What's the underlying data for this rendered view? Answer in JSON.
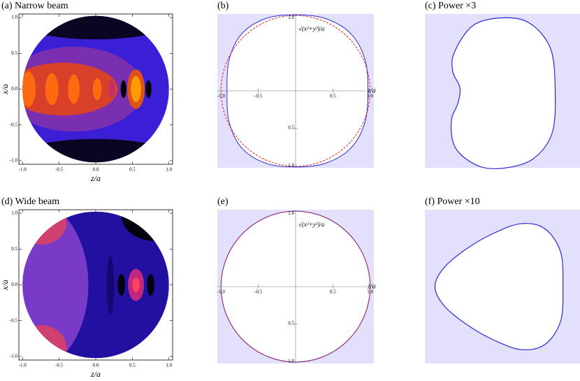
{
  "chart_data": [
    {
      "type": "contour",
      "title": "(a) Narrow beam",
      "xlabel": "z/a",
      "ylabel": "x/a",
      "xlim": [
        -1.05,
        1.05
      ],
      "ylim": [
        -1.05,
        1.05
      ],
      "xticks": [
        {
          "value": -1,
          "label": "-1.0"
        },
        {
          "value": -0.5,
          "label": "-0.5"
        },
        {
          "value": 0,
          "label": "0.0"
        },
        {
          "value": 0.5,
          "label": "0.5"
        },
        {
          "value": 1,
          "label": "1.0"
        }
      ],
      "yticks": [
        {
          "value": -1,
          "label": "-1.0"
        },
        {
          "value": -0.5,
          "label": "-0.5"
        },
        {
          "value": 0,
          "label": "0.0"
        },
        {
          "value": 0.5,
          "label": "0.5"
        },
        {
          "value": 1,
          "label": "1.0"
        }
      ]
    },
    {
      "type": "outline",
      "title": "(b)",
      "xlabel": "z/a",
      "annotation": "√(x²+y²)/a",
      "xlim": [
        -1.05,
        1.05
      ],
      "ylim": [
        -1.02,
        1.02
      ],
      "xticks": [
        {
          "value": -1,
          "label": "-1.0"
        },
        {
          "value": -0.5,
          "label": "-0.5"
        },
        {
          "value": 0.5,
          "label": "0.5"
        },
        {
          "value": 1,
          "label": "1.0"
        }
      ],
      "yticks": [
        {
          "value": 1,
          "label": "1.0"
        },
        {
          "value": -0.5,
          "label": "0.5"
        },
        {
          "value": -1,
          "label": "1.0"
        }
      ],
      "series": [
        {
          "color": "#2b2bd6",
          "dash": false,
          "x": [
            0.97,
            0.93,
            0.74,
            0.4,
            0,
            -0.4,
            -0.72,
            -0.89,
            -0.92,
            -0.89,
            -0.72,
            -0.4,
            0,
            0.4,
            0.74,
            0.93
          ],
          "y": [
            0,
            0.42,
            0.76,
            0.96,
            1.01,
            0.96,
            0.76,
            0.42,
            0,
            -0.42,
            -0.76,
            -0.96,
            -1.01,
            -0.96,
            -0.76,
            -0.42
          ]
        },
        {
          "color": "#e0201e",
          "dash": true,
          "x": [
            1,
            0.924,
            0.707,
            0.383,
            0,
            -0.383,
            -0.707,
            -0.924,
            -1,
            -0.924,
            -0.707,
            -0.383,
            0,
            0.383,
            0.707,
            0.924
          ],
          "y": [
            0,
            0.383,
            0.707,
            0.924,
            1,
            0.924,
            0.707,
            0.383,
            0,
            -0.383,
            -0.707,
            -0.924,
            -1,
            -0.924,
            -0.707,
            -0.383
          ]
        }
      ]
    },
    {
      "type": "shape",
      "title": "(c) Power ×3",
      "xlim": [
        -1,
        1
      ],
      "ylim": [
        -1,
        1
      ],
      "series": [
        {
          "color": "#2b2bd6",
          "x": [
            0.68,
            0.62,
            0.35,
            0.0,
            -0.38,
            -0.62,
            -0.64,
            -0.55,
            -0.57,
            -0.66,
            -0.6,
            -0.3,
            0.05,
            0.4,
            0.64
          ],
          "y": [
            0,
            0.55,
            0.88,
            0.95,
            0.85,
            0.5,
            0.25,
            0.05,
            -0.15,
            -0.4,
            -0.75,
            -0.98,
            -1.0,
            -0.88,
            -0.55
          ]
        }
      ]
    },
    {
      "type": "contour",
      "title": "(d) Wide beam",
      "xlabel": "z/a",
      "ylabel": "x/a",
      "xlim": [
        -1.05,
        1.05
      ],
      "ylim": [
        -1.05,
        1.05
      ],
      "xticks": [
        {
          "value": -1,
          "label": "-1.0"
        },
        {
          "value": -0.5,
          "label": "-0.5"
        },
        {
          "value": 0,
          "label": "0.0"
        },
        {
          "value": 0.5,
          "label": "0.5"
        },
        {
          "value": 1,
          "label": "1.0"
        }
      ],
      "yticks": [
        {
          "value": -1,
          "label": "-1.0"
        },
        {
          "value": -0.5,
          "label": "-0.5"
        },
        {
          "value": 0,
          "label": "0.0"
        },
        {
          "value": 0.5,
          "label": "0.5"
        },
        {
          "value": 1,
          "label": "1.0"
        }
      ]
    },
    {
      "type": "outline",
      "title": "(e)",
      "xlabel": "z/a",
      "annotation": "√(x²+y²)/a",
      "xlim": [
        -1.05,
        1.05
      ],
      "ylim": [
        -1.02,
        1.02
      ],
      "xticks": [
        {
          "value": -1,
          "label": "-1.0"
        },
        {
          "value": -0.5,
          "label": "-0.5"
        },
        {
          "value": 0.5,
          "label": "0.5"
        },
        {
          "value": 1,
          "label": "1.0"
        }
      ],
      "yticks": [
        {
          "value": 1,
          "label": "1.0"
        },
        {
          "value": -0.5,
          "label": "0.5"
        },
        {
          "value": -1,
          "label": "1.0"
        }
      ],
      "series": [
        {
          "color": "#2b2bd6",
          "dash": false,
          "x": [
            1,
            0.924,
            0.707,
            0.383,
            0,
            -0.383,
            -0.707,
            -0.924,
            -1,
            -0.924,
            -0.707,
            -0.383,
            0,
            0.383,
            0.707,
            0.924
          ],
          "y": [
            0,
            0.383,
            0.707,
            0.924,
            1,
            0.924,
            0.707,
            0.383,
            0,
            -0.383,
            -0.707,
            -0.924,
            -1,
            -0.924,
            -0.707,
            -0.383
          ]
        },
        {
          "color": "#e0201e",
          "dash": true,
          "x": [
            1,
            0.924,
            0.707,
            0.383,
            0,
            -0.383,
            -0.707,
            -0.924,
            -1,
            -0.924,
            -0.707,
            -0.383,
            0,
            0.383,
            0.707,
            0.924
          ],
          "y": [
            0,
            0.383,
            0.707,
            0.924,
            1,
            0.924,
            0.707,
            0.383,
            0,
            -0.383,
            -0.707,
            -0.924,
            -1,
            -0.924,
            -0.707,
            -0.383
          ]
        }
      ]
    },
    {
      "type": "shape",
      "title": "(f) Power ×10",
      "xlim": [
        -1,
        1
      ],
      "ylim": [
        -1,
        1
      ],
      "series": [
        {
          "color": "#2b2bd6",
          "x": [
            0.78,
            0.75,
            0.55,
            0.25,
            -0.1,
            -0.45,
            -0.75,
            -0.87,
            -0.75,
            -0.45,
            -0.1,
            0.25,
            0.55,
            0.75
          ],
          "y": [
            0,
            0.45,
            0.75,
            0.82,
            0.7,
            0.5,
            0.25,
            0,
            -0.25,
            -0.5,
            -0.7,
            -0.82,
            -0.75,
            -0.45
          ]
        }
      ]
    }
  ]
}
